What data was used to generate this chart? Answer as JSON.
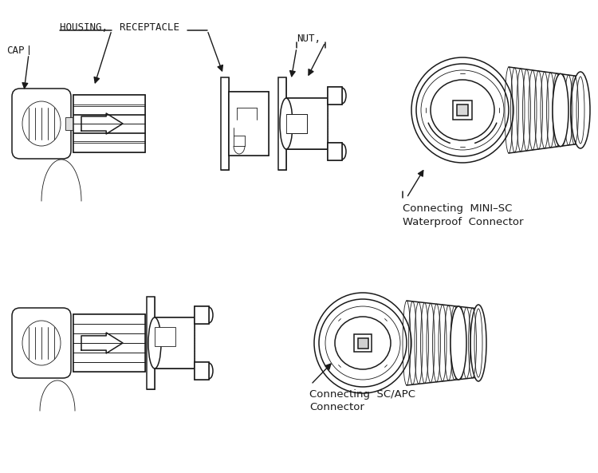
{
  "bg_color": "#ffffff",
  "line_color": "#1a1a1a",
  "lw_main": 1.1,
  "lw_thin": 0.6,
  "lw_thick": 1.6,
  "labels": {
    "cap": "CAP",
    "housing": "HOUSING,  RECEPTACLE",
    "nut": "NUT,",
    "mini_sc_line1": "Connecting  MINI–SC",
    "mini_sc_line2": "Waterproof  Connector",
    "sc_apc_line1": "Connecting  SC/APC",
    "sc_apc_line2": "Connector"
  }
}
